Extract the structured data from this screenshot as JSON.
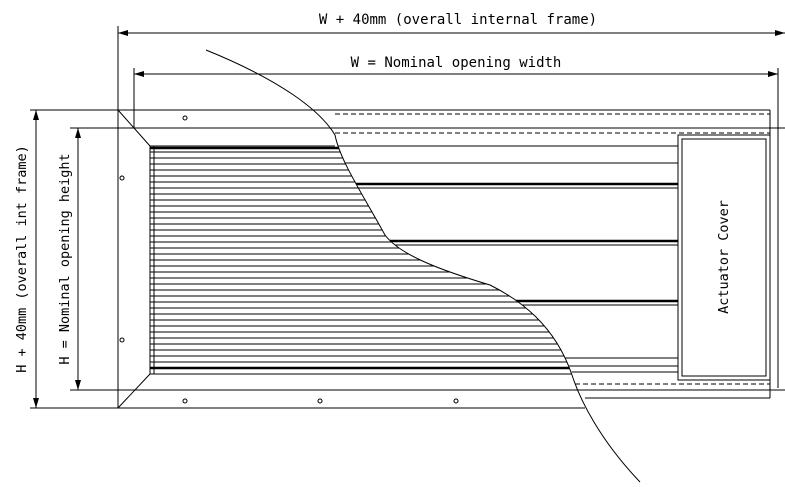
{
  "dimensions": {
    "overall_width": "W + 40mm (overall internal frame)",
    "nominal_width": "W = Nominal opening width",
    "overall_height": "H + 40mm (overall int frame)",
    "nominal_height": "H = Nominal opening height"
  },
  "labels": {
    "actuator_cover": "Actuator Cover"
  }
}
